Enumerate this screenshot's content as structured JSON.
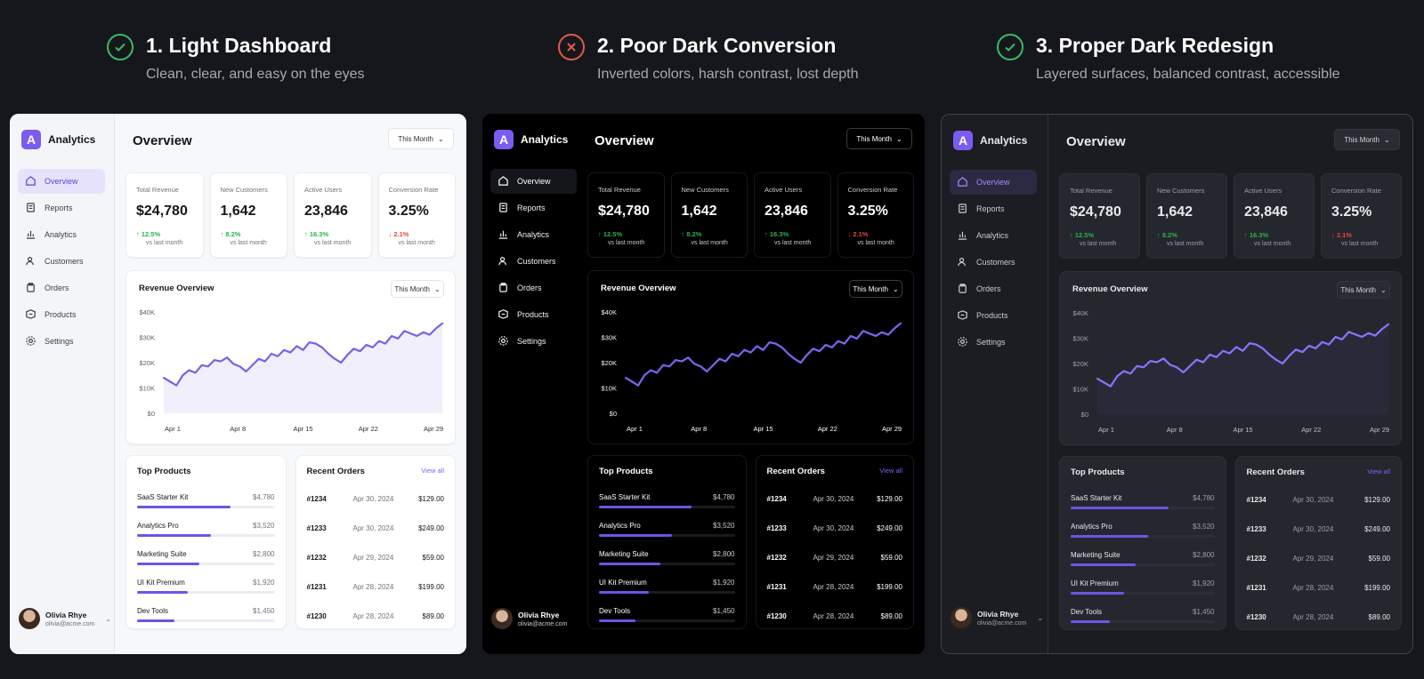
{
  "columns": [
    {
      "title": "1. Light Dashboard",
      "subtitle": "Clean, clear, and easy on the eyes",
      "status": "good"
    },
    {
      "title": "2. Poor Dark Conversion",
      "subtitle": "Inverted colors, harsh contrast, lost depth",
      "status": "bad"
    },
    {
      "title": "3. Proper Dark Redesign",
      "subtitle": "Layered surfaces, balanced contrast, accessible",
      "status": "good"
    }
  ],
  "app": {
    "logo_letter": "A",
    "logo_text": "Analytics",
    "page_title": "Overview",
    "period": "This Month"
  },
  "nav": [
    {
      "label": "Overview",
      "icon": "home-icon",
      "active": true
    },
    {
      "label": "Reports",
      "icon": "report-icon"
    },
    {
      "label": "Analytics",
      "icon": "analytics-icon"
    },
    {
      "label": "Customers",
      "icon": "users-icon"
    },
    {
      "label": "Orders",
      "icon": "orders-icon"
    },
    {
      "label": "Products",
      "icon": "box-icon"
    },
    {
      "label": "Settings",
      "icon": "gear-icon"
    }
  ],
  "stats": [
    {
      "label": "Total Revenue",
      "value": "$24,780",
      "delta": "12.5%",
      "dir": "up",
      "sub": "vs last month"
    },
    {
      "label": "New Customers",
      "value": "1,642",
      "delta": "8.2%",
      "dir": "up",
      "sub": "vs last month"
    },
    {
      "label": "Active Users",
      "value": "23,846",
      "delta": "16.3%",
      "dir": "up",
      "sub": "vs last month"
    },
    {
      "label": "Conversion Rate",
      "value": "3.25%",
      "delta": "2.1%",
      "dir": "down",
      "sub": "vs last month"
    }
  ],
  "chart_data": {
    "type": "line",
    "title": "Revenue Overview",
    "period": "This Month",
    "x_ticks": [
      "Apr 1",
      "Apr 8",
      "Apr 15",
      "Apr 22",
      "Apr 29"
    ],
    "y_ticks": [
      "$0",
      "$10K",
      "$20K",
      "$30K",
      "$40K"
    ],
    "ylim": [
      0,
      40000
    ],
    "grid": false,
    "values": [
      14000,
      12500,
      11000,
      15000,
      17000,
      16000,
      19000,
      18500,
      21000,
      20500,
      22000,
      19500,
      18500,
      16500,
      19000,
      21500,
      20500,
      23500,
      22500,
      25000,
      24000,
      26500,
      25000,
      28000,
      27500,
      26000,
      23500,
      21500,
      20000,
      23000,
      25500,
      24500,
      27000,
      26000,
      28500,
      27500,
      30500,
      29500,
      32500,
      31500,
      30500,
      32000,
      31000,
      33500,
      35500
    ]
  },
  "top_products": {
    "title": "Top Products",
    "items": [
      {
        "name": "SaaS Starter Kit",
        "value": "$4,780",
        "share": 0.68
      },
      {
        "name": "Analytics Pro",
        "value": "$3,520",
        "share": 0.54
      },
      {
        "name": "Marketing Suite",
        "value": "$2,800",
        "share": 0.45
      },
      {
        "name": "UI Kit Premium",
        "value": "$1,920",
        "share": 0.37
      },
      {
        "name": "Dev Tools",
        "value": "$1,450",
        "share": 0.27
      }
    ]
  },
  "recent_orders": {
    "title": "Recent Orders",
    "view_all": "View all",
    "items": [
      {
        "id": "#1234",
        "date": "Apr 30, 2024",
        "amount": "$129.00"
      },
      {
        "id": "#1233",
        "date": "Apr 30, 2024",
        "amount": "$249.00"
      },
      {
        "id": "#1232",
        "date": "Apr 29, 2024",
        "amount": "$59.00"
      },
      {
        "id": "#1231",
        "date": "Apr 28, 2024",
        "amount": "$199.00"
      },
      {
        "id": "#1230",
        "date": "Apr 28, 2024",
        "amount": "$89.00"
      }
    ]
  },
  "user": {
    "name": "Olivia Rhye",
    "email": "olivia@acme.com"
  },
  "colors": {
    "accent": "#7c5cf0",
    "good": "#3dbb64",
    "bad": "#e45a45",
    "up": "#2bb24c",
    "down": "#e4473c"
  }
}
